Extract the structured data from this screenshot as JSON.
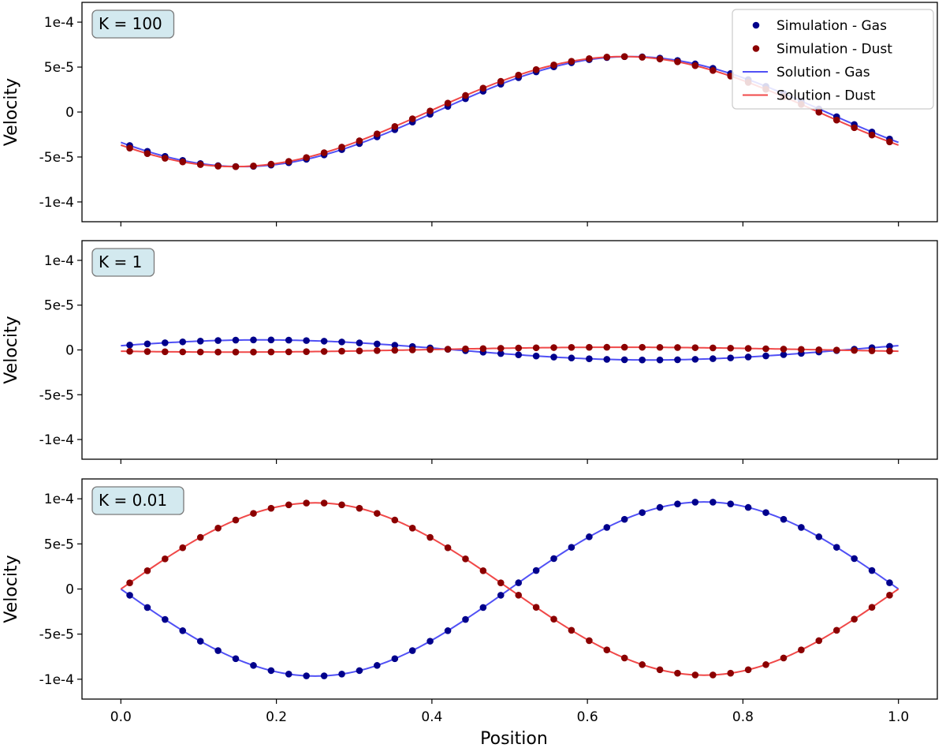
{
  "chart_data": {
    "type": "scatter",
    "xlabel": "Position",
    "ylabel": "Velocity",
    "xlim": [
      -0.05,
      1.05
    ],
    "ylim": [
      -0.000122,
      0.000122
    ],
    "xticks": [
      0.0,
      0.2,
      0.4,
      0.6,
      0.8,
      1.0
    ],
    "xtick_labels": [
      "0.0",
      "0.2",
      "0.4",
      "0.6",
      "0.8",
      "1.0"
    ],
    "yticks": [
      0.0001,
      5e-05,
      0,
      -5e-05,
      -0.0001
    ],
    "ytick_labels": [
      "1e-4",
      "5e-5",
      "0",
      "-5e-5",
      "-1e-4"
    ],
    "legend": {
      "placement": "top-right of first panel",
      "entries": [
        {
          "label": "Simulation - Gas",
          "kind": "marker",
          "color": "#00008b"
        },
        {
          "label": "Simulation - Dust",
          "kind": "marker",
          "color": "#8b0000"
        },
        {
          "label": "Solution - Gas",
          "kind": "line",
          "color": "#5050f5"
        },
        {
          "label": "Solution - Dust",
          "kind": "line",
          "color": "#f04848"
        }
      ]
    },
    "colors": {
      "sim_gas": "#00008b",
      "sim_dust": "#8b0000",
      "sol_gas": "#5050f5",
      "sol_dust": "#f04848",
      "box_fill": "#d3e9ef",
      "box_stroke": "#7a7a7a"
    },
    "sim_x": [
      0.0114,
      0.0341,
      0.0568,
      0.0795,
      0.1023,
      0.125,
      0.1477,
      0.1705,
      0.1932,
      0.2159,
      0.2386,
      0.2614,
      0.2841,
      0.3068,
      0.3295,
      0.3523,
      0.375,
      0.3977,
      0.4205,
      0.4432,
      0.4659,
      0.4886,
      0.5114,
      0.5341,
      0.5568,
      0.5795,
      0.6023,
      0.625,
      0.6477,
      0.6705,
      0.6932,
      0.7159,
      0.7386,
      0.7614,
      0.7841,
      0.8068,
      0.8295,
      0.8523,
      0.875,
      0.8977,
      0.9205,
      0.9432,
      0.9659,
      0.9886
    ],
    "panels": [
      {
        "label": "K = 100",
        "legend": true,
        "gas_model": {
          "offset": 5e-07,
          "amp": 6.12e-05,
          "phase_deg": 214
        },
        "dust_model": {
          "offset": 5e-07,
          "amp": 6.12e-05,
          "phase_deg": 217.5
        }
      },
      {
        "label": "K = 1",
        "legend": false,
        "gas_model": {
          "offset": 0,
          "amp": 1.12e-05,
          "phase_deg": 25
        },
        "dust_model": {
          "offset": 3e-07,
          "amp": 2.7e-06,
          "phase_deg": 219
        }
      },
      {
        "label": "K = 0.01",
        "legend": false,
        "gas_model": {
          "offset": 0,
          "amp": -9.65e-05,
          "phase_deg": 0
        },
        "dust_model": {
          "offset": 0,
          "amp": 9.55e-05,
          "phase_deg": 0
        }
      }
    ]
  }
}
